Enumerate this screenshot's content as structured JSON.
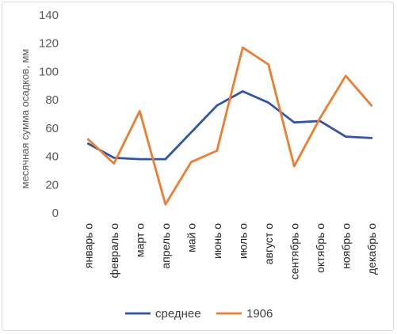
{
  "chart_data": {
    "type": "line",
    "title": "",
    "xlabel": "",
    "ylabel": "месячная сумма осадков, мм",
    "ylim": [
      0,
      140
    ],
    "yticks": [
      0,
      20,
      40,
      60,
      80,
      100,
      120,
      140
    ],
    "grid": false,
    "legend_position": "bottom",
    "categories": [
      "январь о",
      "февраль о",
      "март о",
      "апрель о",
      "май о",
      "июнь о",
      "июль о",
      "август о",
      "сентябрь о",
      "октябрь о",
      "ноябрь о",
      "декабрь о"
    ],
    "series": [
      {
        "name": "среднее",
        "color": "#2e55a8",
        "values": [
          49,
          39,
          38,
          38,
          57,
          76,
          86,
          78,
          64,
          65,
          54,
          53
        ]
      },
      {
        "name": "1906",
        "color": "#ed7d31",
        "values": [
          52,
          35,
          72,
          6,
          36,
          44,
          117,
          105,
          33,
          67,
          97,
          76
        ]
      }
    ]
  }
}
